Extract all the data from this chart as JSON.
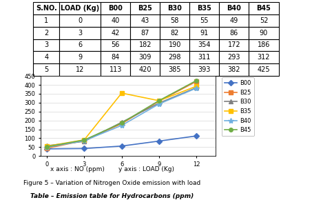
{
  "table_headers": [
    "S.NO.",
    "LOAD (Kg)",
    "B00",
    "B25",
    "B30",
    "B35",
    "B40",
    "B45"
  ],
  "table_rows": [
    [
      "1",
      "0",
      "40",
      "43",
      "58",
      "55",
      "49",
      "52"
    ],
    [
      "2",
      "3",
      "42",
      "87",
      "82",
      "91",
      "86",
      "90"
    ],
    [
      "3",
      "6",
      "56",
      "182",
      "190",
      "354",
      "172",
      "186"
    ],
    [
      "4",
      "9",
      "84",
      "309",
      "298",
      "311",
      "293",
      "312"
    ],
    [
      "5",
      "12",
      "113",
      "420",
      "385",
      "393",
      "382",
      "425"
    ]
  ],
  "load": [
    0,
    3,
    6,
    9,
    12
  ],
  "series": {
    "B00": [
      40,
      42,
      56,
      84,
      113
    ],
    "B25": [
      43,
      87,
      182,
      309,
      420
    ],
    "B30": [
      58,
      82,
      190,
      298,
      385
    ],
    "B35": [
      55,
      91,
      354,
      311,
      393
    ],
    "B40": [
      49,
      86,
      172,
      293,
      382
    ],
    "B45": [
      52,
      90,
      186,
      312,
      425
    ]
  },
  "line_colors": {
    "B00": "#4472C4",
    "B25": "#ED7D31",
    "B30": "#808080",
    "B35": "#FFC000",
    "B40": "#70B0E0",
    "B45": "#70AD47"
  },
  "markers": {
    "B00": "D",
    "B25": "s",
    "B30": "^",
    "B35": "s",
    "B40": "*",
    "B45": "o"
  },
  "ylim": [
    0,
    450
  ],
  "yticks": [
    0,
    50,
    100,
    150,
    200,
    250,
    300,
    350,
    400,
    450
  ],
  "xticks": [
    0,
    3,
    6,
    9,
    12
  ],
  "xlabel_text": "x axis : NO (ppm)       y axis : LOAD (Kg)",
  "figure_caption": "Figure 5 – Variation of Nitrogen Oxide emission with load",
  "table_caption": "Table – Emission table for Hydrocarbons (ppm)"
}
